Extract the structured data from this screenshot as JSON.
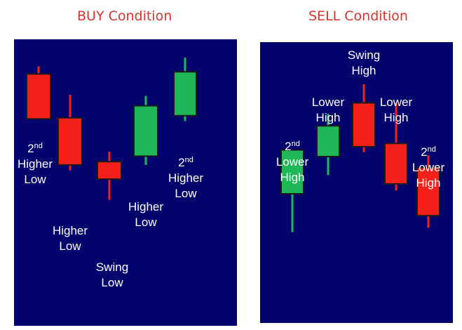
{
  "colors": {
    "background": "#03036e",
    "bullish": "#1fb858",
    "bearish": "#f5201a",
    "title": "#d9342b",
    "label": "#ffffff"
  },
  "buy": {
    "title": "BUY Condition",
    "candles": [
      {
        "color": "red",
        "high": 9.0,
        "open": 8.3,
        "close": 4.2,
        "low": 4.2
      },
      {
        "color": "red",
        "high": 6.4,
        "open": 4.3,
        "close": 0.0,
        "low": -0.5
      },
      {
        "color": "red",
        "high": 1.2,
        "open": 0.3,
        "close": -1.3,
        "low": -3.2
      },
      {
        "color": "green",
        "high": 6.3,
        "open": 0.8,
        "close": 5.4,
        "low": 0.0
      },
      {
        "color": "green",
        "high": 9.8,
        "open": 4.5,
        "close": 8.5,
        "low": 4.0
      }
    ],
    "labels": [
      {
        "lines": [
          {
            "text": "2",
            "sup": "nd"
          },
          {
            "text": "Higher"
          },
          {
            "text": "Low"
          }
        ]
      },
      {
        "lines": [
          {
            "text": "Higher"
          },
          {
            "text": "Low"
          }
        ]
      },
      {
        "lines": [
          {
            "text": "Swing"
          },
          {
            "text": "Low"
          }
        ]
      },
      {
        "lines": [
          {
            "text": "Higher"
          },
          {
            "text": "Low"
          }
        ]
      },
      {
        "lines": [
          {
            "text": "2",
            "sup": "nd"
          },
          {
            "text": "Higher"
          },
          {
            "text": "Low"
          }
        ]
      }
    ]
  },
  "sell": {
    "title": "SELL Condition",
    "candles": [
      {
        "color": "green",
        "high": 6.5,
        "open": 2.5,
        "close": 6.5,
        "low": -1.0
      },
      {
        "color": "green",
        "high": 9.8,
        "open": 5.9,
        "close": 8.7,
        "low": 4.2
      },
      {
        "color": "red",
        "high": 12.5,
        "open": 10.8,
        "close": 6.8,
        "low": 6.3
      },
      {
        "color": "red",
        "high": 10.8,
        "open": 7.1,
        "close": 3.4,
        "low": 2.8
      },
      {
        "color": "red",
        "high": 6.0,
        "open": 4.9,
        "close": 0.5,
        "low": -0.6
      }
    ],
    "labels": [
      {
        "lines": [
          {
            "text": "2",
            "sup": "nd"
          },
          {
            "text": "Lower"
          },
          {
            "text": "High"
          }
        ]
      },
      {
        "lines": [
          {
            "text": "Lower"
          },
          {
            "text": "High"
          }
        ]
      },
      {
        "lines": [
          {
            "text": "Swing"
          },
          {
            "text": "High"
          }
        ]
      },
      {
        "lines": [
          {
            "text": "Lower"
          },
          {
            "text": "High"
          }
        ]
      },
      {
        "lines": [
          {
            "text": "2",
            "sup": "nd"
          },
          {
            "text": "Lower"
          },
          {
            "text": "High"
          }
        ]
      }
    ]
  }
}
